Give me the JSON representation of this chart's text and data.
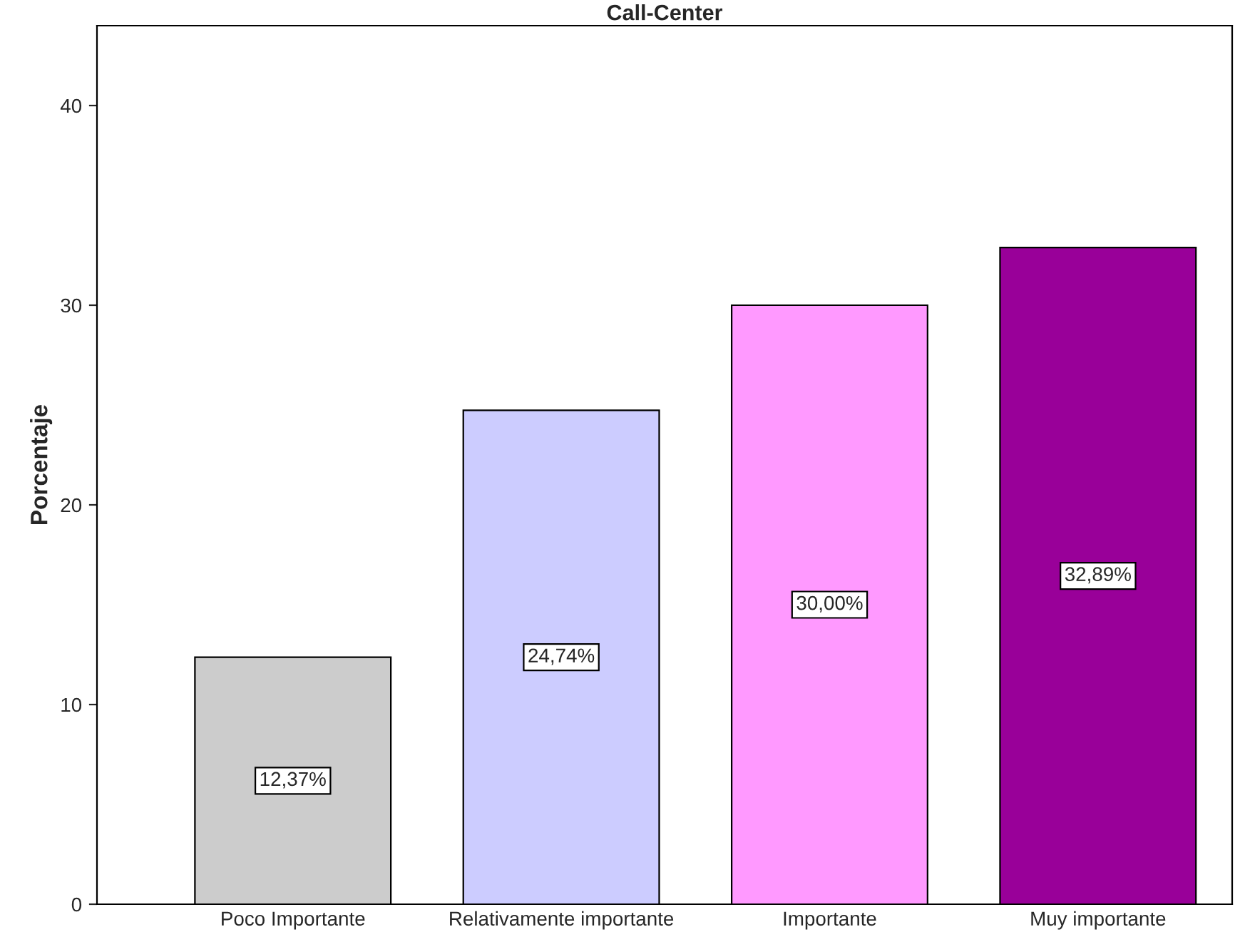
{
  "chart_data": {
    "type": "bar",
    "title": "Call-Center",
    "ylabel": "Porcentaje",
    "categories": [
      "Poco Importante",
      "Relativamente importante",
      "Importante",
      "Muy importante"
    ],
    "values": [
      12.37,
      24.74,
      30.0,
      32.89
    ],
    "colors": [
      "#cccccc",
      "#ccccff",
      "#ff99ff",
      "#990099"
    ],
    "value_labels": [
      "12,37%",
      "24,74%",
      "30,00%",
      "32,89%"
    ],
    "ylim": [
      0,
      44
    ],
    "yticks": [
      0,
      10,
      20,
      30,
      40
    ],
    "grid": false,
    "legend": false
  }
}
